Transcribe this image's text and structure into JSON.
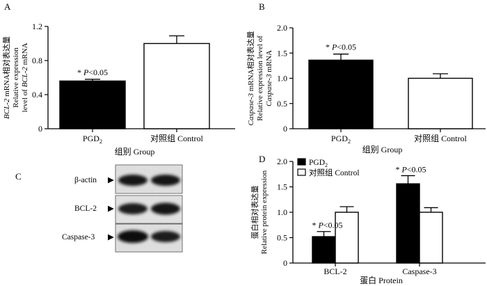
{
  "chart_data": [
    {
      "panel": "A",
      "type": "bar",
      "ylabel": [
        "BCL-2 mRNA相对表达量",
        "Relative expression",
        "level of BCL-2 mRNA"
      ],
      "xlabel": "组别  Group",
      "categories": [
        "PGD2",
        "对照组  Control"
      ],
      "values": [
        0.56,
        1.0
      ],
      "errors": [
        0.02,
        0.09
      ],
      "colors": [
        "#000000",
        "#ffffff"
      ],
      "ylim": [
        0,
        1.2
      ],
      "yticks": [
        "0",
        "0.4",
        "0.8",
        "1.2"
      ],
      "annotations": [
        {
          "bar": 0,
          "text": "* P<0.05"
        }
      ]
    },
    {
      "panel": "B",
      "type": "bar",
      "ylabel": [
        "Caspase-3 mRNA相对表达量",
        "Relative expression level of",
        "Caspase-3 mRNA"
      ],
      "xlabel": "组别  Group",
      "categories": [
        "PGD2",
        "对照组  Control"
      ],
      "values": [
        1.36,
        1.0
      ],
      "errors": [
        0.12,
        0.09
      ],
      "colors": [
        "#000000",
        "#ffffff"
      ],
      "ylim": [
        0,
        2.0
      ],
      "yticks": [
        "0",
        "0.5",
        "1.0",
        "1.5",
        "2.0"
      ],
      "annotations": [
        {
          "bar": 0,
          "text": "* P<0.05"
        }
      ]
    },
    {
      "panel": "D",
      "type": "bar",
      "ylabel": [
        "蛋白相对表达量",
        "Relative protein expression"
      ],
      "xlabel": "蛋白  Protein",
      "categories": [
        "BCL-2",
        "Caspase-3"
      ],
      "series": [
        {
          "name": "PGD2",
          "values": [
            0.52,
            1.56
          ],
          "errors": [
            0.1,
            0.16
          ],
          "color": "#000000"
        },
        {
          "name": "对照组  Control",
          "values": [
            1.0,
            1.0
          ],
          "errors": [
            0.11,
            0.09
          ],
          "color": "#ffffff"
        }
      ],
      "ylim": [
        0,
        2.0
      ],
      "yticks": [
        "0",
        "0.5",
        "1.0",
        "1.5",
        "2.0"
      ],
      "legend": "top-left",
      "annotations": [
        {
          "category": 0,
          "text": "* P<0.05"
        },
        {
          "category": 1,
          "text": "* P<0.05"
        }
      ]
    }
  ],
  "blot": {
    "panel": "C",
    "lanes": 2,
    "rows": [
      "β-actin",
      "BCL-2",
      "Caspase-3"
    ],
    "arrow": "▶"
  }
}
